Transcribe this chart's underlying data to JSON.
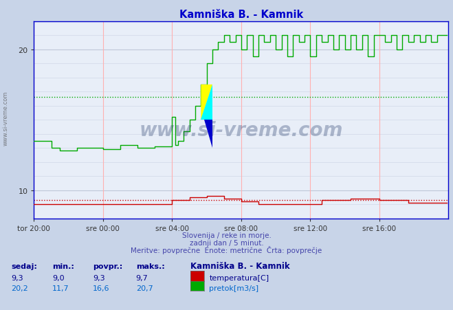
{
  "title": "Kamniška B. - Kamnik",
  "title_color": "#0000cc",
  "bg_color": "#c8d4e8",
  "plot_bg_color": "#e8eef8",
  "vgrid_color": "#ffb0b0",
  "axis_color": "#0000cc",
  "xlim_max": 288,
  "ylim": [
    8,
    22
  ],
  "yticks": [
    10,
    20
  ],
  "xtick_labels": [
    "tor 20:00",
    "sre 00:00",
    "sre 04:00",
    "sre 08:00",
    "sre 12:00",
    "sre 16:00"
  ],
  "xtick_pos": [
    0,
    48,
    96,
    144,
    192,
    240
  ],
  "temp_color": "#cc0000",
  "flow_color": "#00aa00",
  "temp_avg_line": 9.3,
  "flow_avg_line": 16.6,
  "watermark": "www.si-vreme.com",
  "watermark_color": "#1a3060",
  "footer_line1": "Slovenija / reke in morje.",
  "footer_line2": "zadnji dan / 5 minut.",
  "footer_line3": "Meritve: povprečne  Enote: metrične  Črta: povprečje",
  "footer_color": "#4444aa",
  "table_headers": [
    "sedaj:",
    "min.:",
    "povpr.:",
    "maks.:"
  ],
  "table_color": "#00008b",
  "station_label": "Kamniška B. - Kamnik",
  "temp_row": [
    "9,3",
    "9,0",
    "9,3",
    "9,7"
  ],
  "flow_row": [
    "20,2",
    "11,7",
    "16,6",
    "20,7"
  ],
  "temp_label": "temperatura[C]",
  "flow_label": "pretok[m3/s]",
  "temp_label_color": "#00008b",
  "flow_label_color": "#0066cc"
}
